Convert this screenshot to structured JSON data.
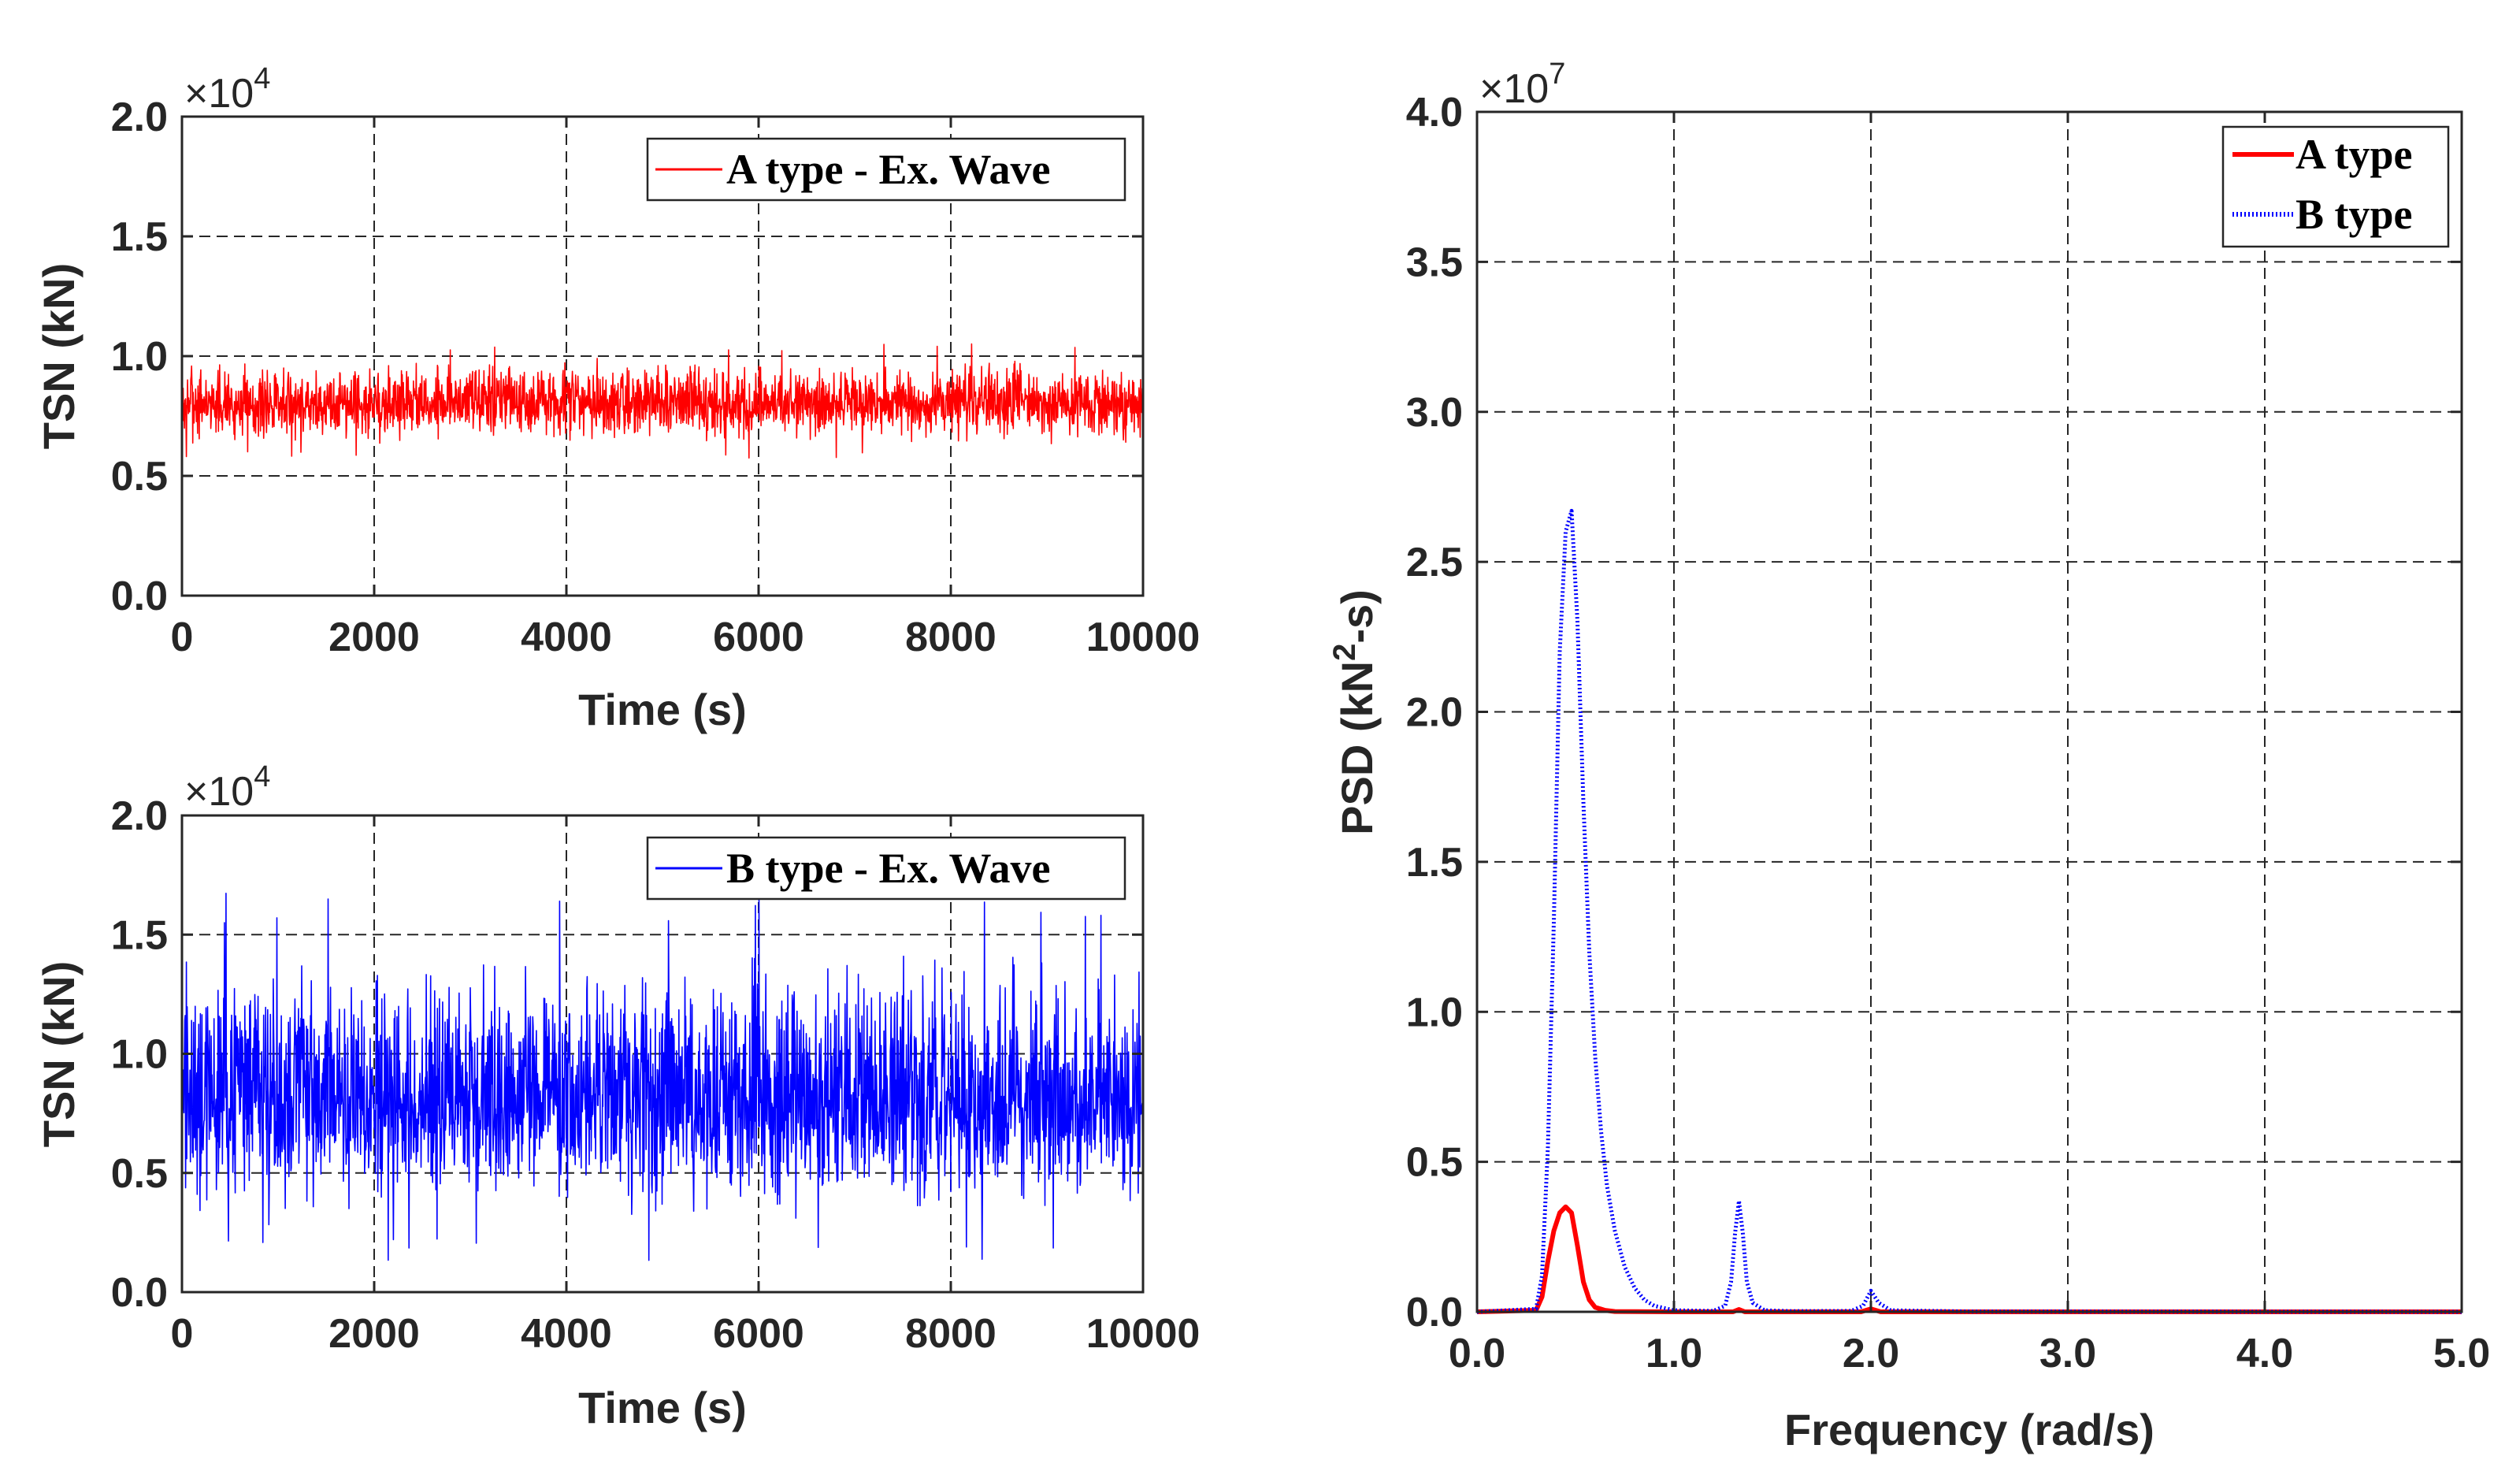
{
  "colors": {
    "a_type": "#ff0000",
    "b_type": "#0000ff",
    "grid": "#262626",
    "axis": "#262626"
  },
  "chart_data": [
    {
      "id": "top-left",
      "type": "line",
      "title": "",
      "xlabel": "Time (s)",
      "ylabel": "TSN (kN)",
      "xlim": [
        0,
        10000
      ],
      "ylim": [
        0,
        2.0
      ],
      "y_multiplier": {
        "prefix": "×10",
        "exp": "4"
      },
      "x_ticks": [
        "0",
        "2000",
        "4000",
        "6000",
        "8000",
        "10000"
      ],
      "y_ticks": [
        "0.0",
        "0.5",
        "1.0",
        "1.5",
        "2.0"
      ],
      "grid": true,
      "legend": {
        "position": "top-right",
        "entries": [
          "A type - Ex. Wave"
        ]
      },
      "series": [
        {
          "name": "A type - Ex. Wave",
          "color": "#ff0000",
          "mean": 0.8,
          "min": 0.57,
          "max": 1.06,
          "seed": 7
        }
      ]
    },
    {
      "id": "bottom-left",
      "type": "line",
      "title": "",
      "xlabel": "Time (s)",
      "ylabel": "TSN (kN)",
      "xlim": [
        0,
        10000
      ],
      "ylim": [
        0,
        2.0
      ],
      "y_multiplier": {
        "prefix": "×10",
        "exp": "4"
      },
      "x_ticks": [
        "0",
        "2000",
        "4000",
        "6000",
        "8000",
        "10000"
      ],
      "y_ticks": [
        "0.0",
        "0.5",
        "1.0",
        "1.5",
        "2.0"
      ],
      "grid": true,
      "legend": {
        "position": "top-right",
        "entries": [
          "B type - Ex. Wave"
        ]
      },
      "series": [
        {
          "name": "B type - Ex. Wave",
          "color": "#0000ff",
          "mean": 0.8,
          "min": 0.13,
          "max": 1.68,
          "seed": 13
        }
      ]
    },
    {
      "id": "right",
      "type": "line",
      "title": "",
      "xlabel": "Frequency (rad/s)",
      "ylabel": "PSD (kN",
      "ylabel_sup": "2",
      "ylabel_tail": "-s)",
      "xlim": [
        0,
        5.0
      ],
      "ylim": [
        0,
        4.0
      ],
      "y_multiplier": {
        "prefix": "×10",
        "exp": "7"
      },
      "x_ticks": [
        "0.0",
        "1.0",
        "2.0",
        "3.0",
        "4.0",
        "5.0"
      ],
      "y_ticks": [
        "0.0",
        "0.5",
        "1.0",
        "1.5",
        "2.0",
        "2.5",
        "3.0",
        "3.5",
        "4.0"
      ],
      "grid": true,
      "legend": {
        "position": "top-right",
        "entries": [
          "A type",
          "B type"
        ]
      },
      "series": [
        {
          "name": "A type",
          "color": "#ff0000",
          "style": "solid",
          "x": [
            0,
            0.3,
            0.33,
            0.36,
            0.39,
            0.42,
            0.45,
            0.48,
            0.51,
            0.54,
            0.57,
            0.6,
            0.65,
            0.7,
            1.0,
            1.3,
            1.33,
            1.36,
            1.95,
            2.0,
            2.05,
            2.5,
            5.0
          ],
          "y": [
            0,
            0.005,
            0.05,
            0.17,
            0.27,
            0.33,
            0.35,
            0.33,
            0.22,
            0.1,
            0.04,
            0.015,
            0.005,
            0.001,
            0.0,
            0.0,
            0.008,
            0.0,
            0.0,
            0.01,
            0.0,
            0.0,
            0.0
          ]
        },
        {
          "name": "B type",
          "color": "#0000ff",
          "style": "dotted",
          "x": [
            0,
            0.3,
            0.33,
            0.36,
            0.39,
            0.42,
            0.45,
            0.48,
            0.51,
            0.54,
            0.57,
            0.6,
            0.63,
            0.66,
            0.7,
            0.75,
            0.8,
            0.85,
            0.9,
            1.0,
            1.2,
            1.26,
            1.29,
            1.31,
            1.33,
            1.35,
            1.37,
            1.4,
            1.46,
            1.6,
            1.9,
            1.96,
            2.0,
            2.04,
            2.1,
            2.5,
            5.0
          ],
          "y": [
            0,
            0.01,
            0.12,
            0.55,
            1.3,
            2.2,
            2.6,
            2.67,
            2.3,
            1.7,
            1.2,
            0.85,
            0.6,
            0.42,
            0.27,
            0.15,
            0.08,
            0.04,
            0.02,
            0.005,
            0.003,
            0.02,
            0.1,
            0.26,
            0.37,
            0.26,
            0.1,
            0.03,
            0.005,
            0.002,
            0.003,
            0.02,
            0.07,
            0.03,
            0.005,
            0.001,
            0.0
          ]
        }
      ]
    }
  ]
}
